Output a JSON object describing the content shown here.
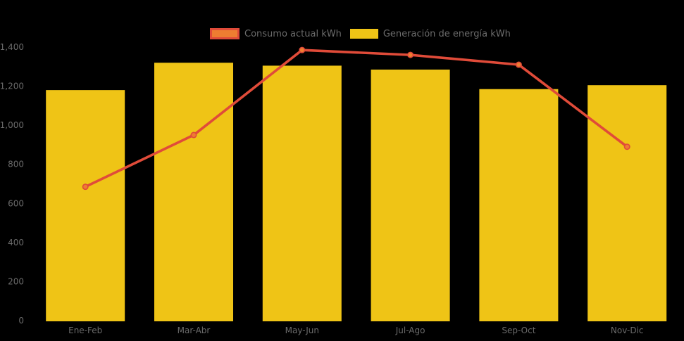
{
  "colors": {
    "background": "#000000",
    "text": "#6B6B6B",
    "bar_fill": "#EFC416",
    "line_stroke": "#E04B39",
    "marker_fill": "#EE7D31"
  },
  "chart_data": {
    "type": "bar",
    "subtype": "bar-line-combo",
    "title": "",
    "xlabel": "",
    "ylabel": "",
    "categories": [
      "Ene-Feb",
      "Mar-Abr",
      "May-Jun",
      "Jul-Ago",
      "Sep-Oct",
      "Nov-Dic"
    ],
    "series": [
      {
        "name": "Consumo actual kWh",
        "type": "line",
        "values": [
          685,
          950,
          1385,
          1360,
          1310,
          890
        ],
        "color": "#E04B39",
        "marker_color": "#EE7D31"
      },
      {
        "name": "Generación de energía kWh",
        "type": "bar",
        "values": [
          1180,
          1320,
          1305,
          1285,
          1185,
          1205
        ],
        "color": "#EFC416"
      }
    ],
    "ylim": [
      0,
      1400
    ],
    "ytick_step": 200,
    "ytick_labels": [
      "0",
      "200",
      "400",
      "600",
      "800",
      "1,000",
      "1,200",
      "1,400"
    ],
    "grid": false,
    "legend_position": "top"
  }
}
